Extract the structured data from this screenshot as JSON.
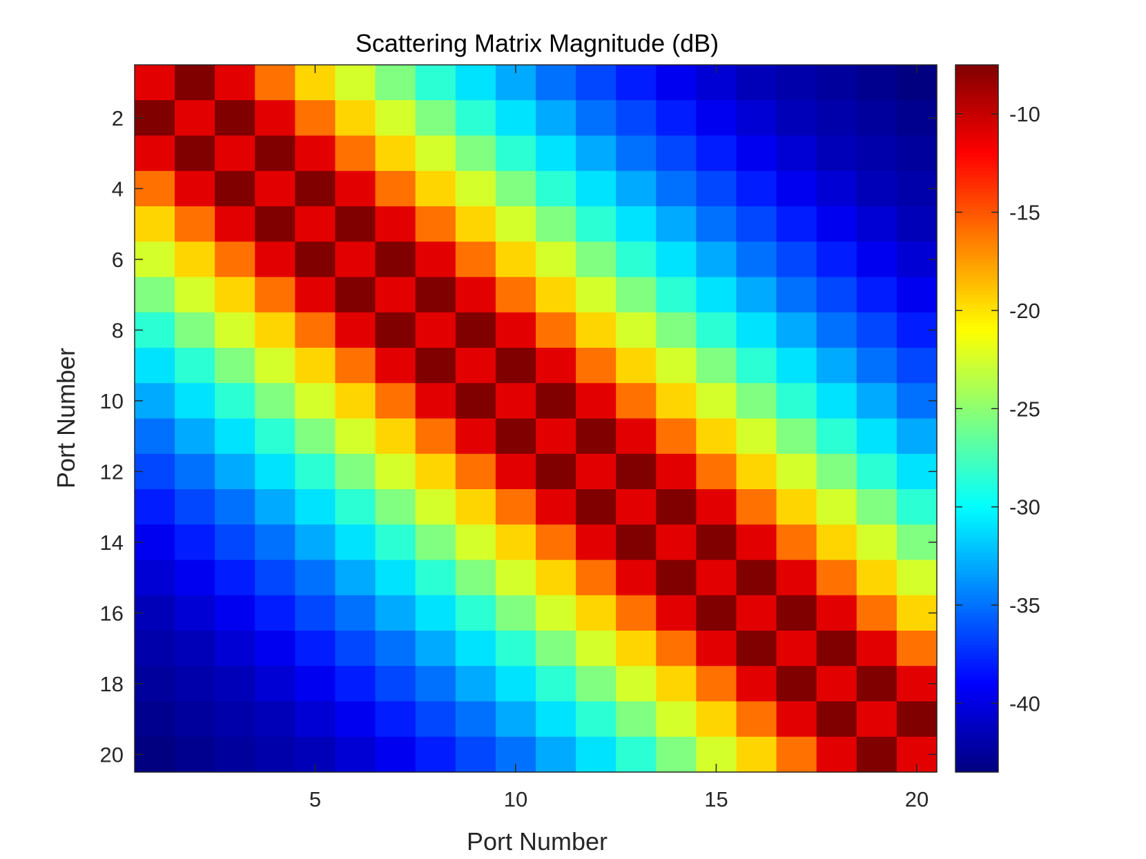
{
  "chart_data": {
    "type": "heatmap",
    "title": "Scattering Matrix Magnitude (dB)",
    "xlabel": "Port Number",
    "ylabel": "Port Number",
    "x": [
      1,
      2,
      3,
      4,
      5,
      6,
      7,
      8,
      9,
      10,
      11,
      12,
      13,
      14,
      15,
      16,
      17,
      18,
      19,
      20
    ],
    "y": [
      1,
      2,
      3,
      4,
      5,
      6,
      7,
      8,
      9,
      10,
      11,
      12,
      13,
      14,
      15,
      16,
      17,
      18,
      19,
      20
    ],
    "xlim": [
      0.5,
      20.5
    ],
    "ylim": [
      0.5,
      20.5
    ],
    "y_direction": "reverse",
    "xticks": [
      5,
      10,
      15,
      20
    ],
    "yticks": [
      2,
      4,
      6,
      8,
      10,
      12,
      14,
      16,
      18,
      20
    ],
    "colormap": "jet",
    "clim": [
      -43.5,
      -7.5
    ],
    "colorbar": {
      "ticks": [
        -10,
        -15,
        -20,
        -25,
        -30,
        -35,
        -40
      ],
      "placement": "right"
    },
    "values_rule": "value(i,j) ≈ -7.5 for |i-j|=1; -11 for |i-j|=0 or 2; -16 for |i-j|=3; then about -3 dB per additional port of separation, approaching -43.5 at |i-j|=19",
    "band_profile_db": [
      -11,
      -7.5,
      -11,
      -16,
      -19.5,
      -22.5,
      -25.5,
      -28.5,
      -31,
      -33,
      -35,
      -36.5,
      -38,
      -39.5,
      -40.5,
      -41.5,
      -42,
      -42.5,
      -43,
      -43.5
    ]
  }
}
